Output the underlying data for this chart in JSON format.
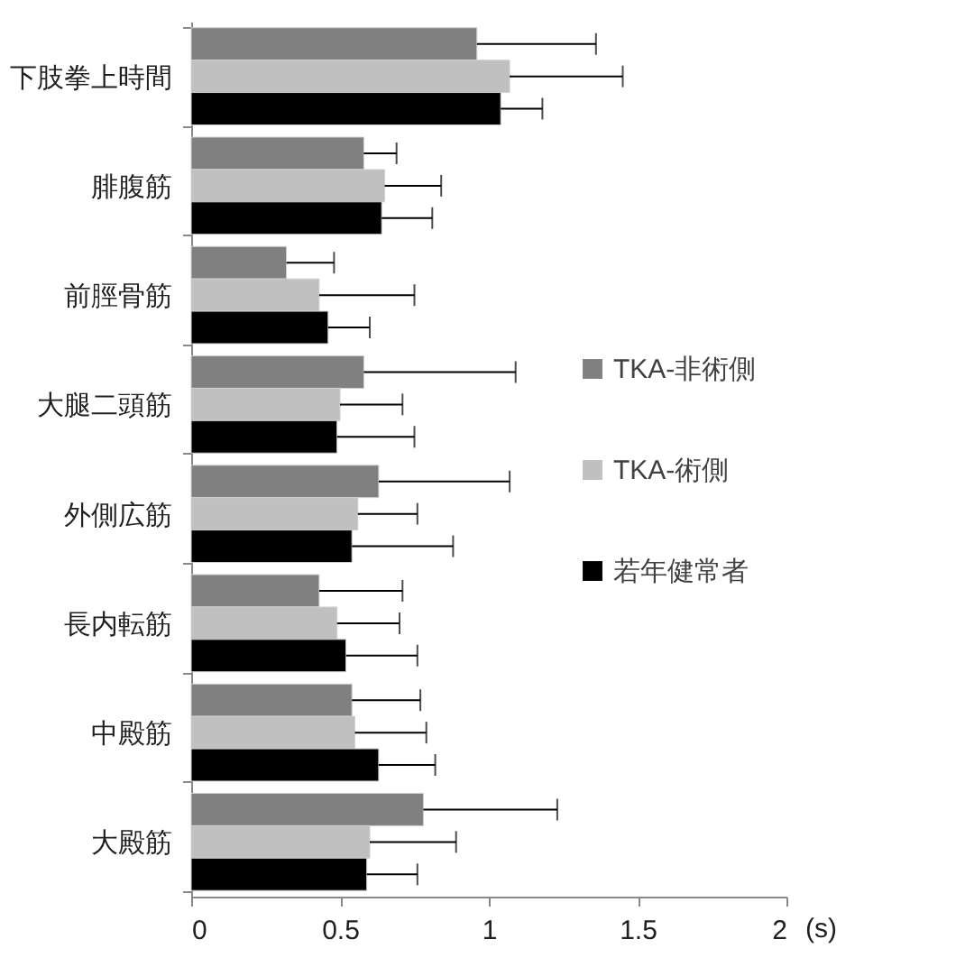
{
  "chart_data": {
    "type": "bar",
    "orientation": "horizontal",
    "xlabel": "(s)",
    "categories": [
      "下肢拳上時間",
      "腓腹筋",
      "前脛骨筋",
      "大腿二頭筋",
      "外側広筋",
      "長内転筋",
      "中殿筋",
      "大殿筋"
    ],
    "series": [
      {
        "name": "TKA-非術側",
        "color": "#808080",
        "values": [
          0.96,
          0.58,
          0.32,
          0.58,
          0.63,
          0.43,
          0.54,
          0.78
        ],
        "errors": [
          [
            0.96,
            1.36
          ],
          [
            0.58,
            0.69
          ],
          [
            0.32,
            0.48
          ],
          [
            0.58,
            1.09
          ],
          [
            0.63,
            1.07
          ],
          [
            0.43,
            0.71
          ],
          [
            0.54,
            0.77
          ],
          [
            0.78,
            1.23
          ]
        ]
      },
      {
        "name": "TKA-術側",
        "color": "#c0c0c0",
        "values": [
          1.07,
          0.65,
          0.43,
          0.5,
          0.56,
          0.49,
          0.55,
          0.6
        ],
        "errors": [
          [
            1.07,
            1.45
          ],
          [
            0.65,
            0.84
          ],
          [
            0.43,
            0.75
          ],
          [
            0.5,
            0.71
          ],
          [
            0.56,
            0.76
          ],
          [
            0.49,
            0.7
          ],
          [
            0.55,
            0.79
          ],
          [
            0.6,
            0.89
          ]
        ]
      },
      {
        "name": "若年健常者",
        "color": "#000000",
        "values": [
          1.04,
          0.64,
          0.46,
          0.49,
          0.54,
          0.52,
          0.63,
          0.59
        ],
        "errors": [
          [
            1.04,
            1.18
          ],
          [
            0.64,
            0.81
          ],
          [
            0.46,
            0.6
          ],
          [
            0.49,
            0.75
          ],
          [
            0.54,
            0.88
          ],
          [
            0.52,
            0.76
          ],
          [
            0.63,
            0.82
          ],
          [
            0.59,
            0.76
          ]
        ]
      }
    ],
    "xlim": [
      0,
      2
    ],
    "xticks": [
      0,
      0.5,
      1,
      1.5,
      2
    ],
    "grid": false,
    "legend": "right"
  }
}
